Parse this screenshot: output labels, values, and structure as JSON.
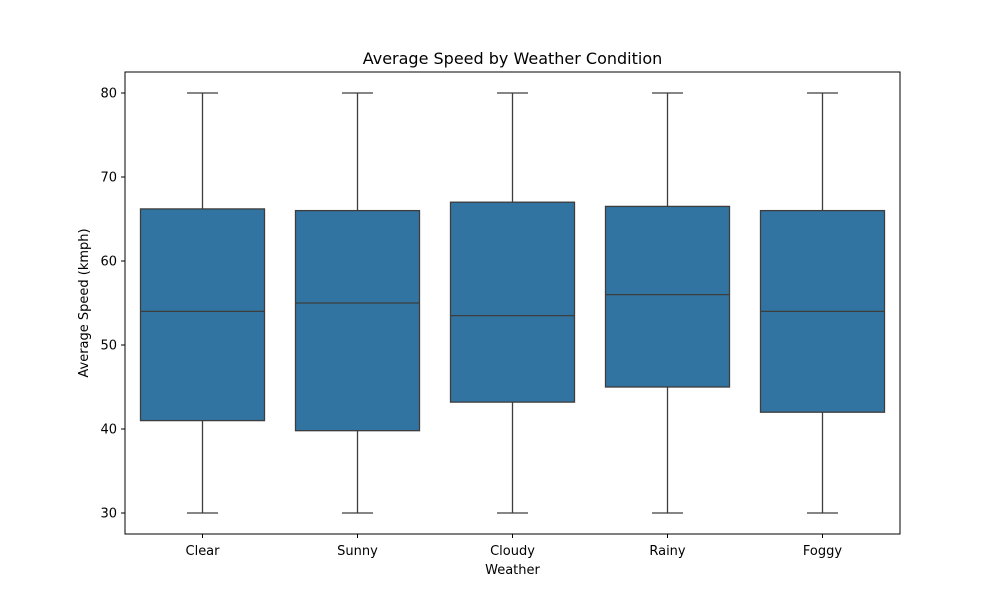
{
  "chart_data": {
    "type": "box",
    "title": "Average Speed by Weather Condition",
    "xlabel": "Weather",
    "ylabel": "Average Speed (kmph)",
    "categories": [
      "Clear",
      "Sunny",
      "Cloudy",
      "Rainy",
      "Foggy"
    ],
    "boxes": [
      {
        "category": "Clear",
        "min": 30,
        "q1": 41.0,
        "median": 54.0,
        "q3": 66.2,
        "max": 80
      },
      {
        "category": "Sunny",
        "min": 30,
        "q1": 39.8,
        "median": 55.0,
        "q3": 66.0,
        "max": 80
      },
      {
        "category": "Cloudy",
        "min": 30,
        "q1": 43.2,
        "median": 53.5,
        "q3": 67.0,
        "max": 80
      },
      {
        "category": "Rainy",
        "min": 30,
        "q1": 45.0,
        "median": 56.0,
        "q3": 66.5,
        "max": 80
      },
      {
        "category": "Foggy",
        "min": 30,
        "q1": 42.0,
        "median": 54.0,
        "q3": 66.0,
        "max": 80
      }
    ],
    "yticks": [
      30,
      40,
      50,
      60,
      70,
      80
    ],
    "ylim": [
      27.5,
      82.5
    ],
    "box_color": "#3274a1",
    "line_color": "#3d3d3d",
    "grid": false,
    "legend": "none"
  }
}
